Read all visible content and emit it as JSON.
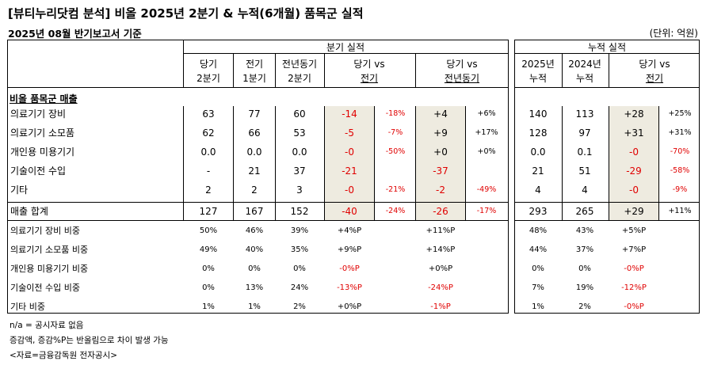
{
  "title": "[뷰티누리닷컴 분석] 비올 2025년 2분기 & 누적(6개월) 품목군 실적",
  "subtitle": "2025년 08월 반기보고서 기준",
  "unit": "(단위: 억원)",
  "headers": {
    "quarter_group": "분기 실적",
    "cumulative_group": "누적 실적",
    "cur_q": [
      "당기",
      "2분기"
    ],
    "prev_q": [
      "전기",
      "1분기"
    ],
    "yoy_q": [
      "전년동기",
      "2분기"
    ],
    "diff_prev": [
      "당기 vs",
      "전기"
    ],
    "diff_yoy": [
      "당기 vs",
      "전년동기"
    ],
    "cum_2025": [
      "2025년",
      "누적"
    ],
    "cum_2024": [
      "2024년",
      "누적"
    ],
    "cum_diff": [
      "당기 vs",
      "전기"
    ]
  },
  "section_label": "비올 품목군 매출",
  "rows": [
    {
      "label": "의료기기 장비",
      "q2": "63",
      "q1": "77",
      "yq2": "60",
      "dp": "-14",
      "dpp": "-18%",
      "dy": "+4",
      "dyp": "+6%",
      "c25": "140",
      "c24": "113",
      "cd": "+28",
      "cdp": "+25%"
    },
    {
      "label": "의료기기 소모품",
      "q2": "62",
      "q1": "66",
      "yq2": "53",
      "dp": "-5",
      "dpp": "-7%",
      "dy": "+9",
      "dyp": "+17%",
      "c25": "128",
      "c24": "97",
      "cd": "+31",
      "cdp": "+31%"
    },
    {
      "label": "개인용 미용기기",
      "q2": "0.0",
      "q1": "0.0",
      "yq2": "0.0",
      "dp": "-0",
      "dpp": "-50%",
      "dy": "+0",
      "dyp": "+0%",
      "c25": "0.0",
      "c24": "0.1",
      "cd": "-0",
      "cdp": "-70%"
    },
    {
      "label": "기술이전 수입",
      "q2": "-",
      "q1": "21",
      "yq2": "37",
      "dp": "-21",
      "dpp": "",
      "dy": "-37",
      "dyp": "",
      "c25": "21",
      "c24": "51",
      "cd": "-29",
      "cdp": "-58%"
    },
    {
      "label": "기타",
      "q2": "2",
      "q1": "2",
      "yq2": "3",
      "dp": "-0",
      "dpp": "-21%",
      "dy": "-2",
      "dyp": "-49%",
      "c25": "4",
      "c24": "4",
      "cd": "-0",
      "cdp": "-9%"
    }
  ],
  "total": {
    "label": "매출 합계",
    "q2": "127",
    "q1": "167",
    "yq2": "152",
    "dp": "-40",
    "dpp": "-24%",
    "dy": "-26",
    "dyp": "-17%",
    "c25": "293",
    "c24": "265",
    "cd": "+29",
    "cdp": "+11%"
  },
  "ratios": [
    {
      "label": "의료기기 장비 비중",
      "q2": "50%",
      "q1": "46%",
      "yq2": "39%",
      "dp": "+4%P",
      "dy": "+11%P",
      "c25": "48%",
      "c24": "43%",
      "cd": "+5%P"
    },
    {
      "label": "의료기기 소모품 비중",
      "q2": "49%",
      "q1": "40%",
      "yq2": "35%",
      "dp": "+9%P",
      "dy": "+14%P",
      "c25": "44%",
      "c24": "37%",
      "cd": "+7%P"
    },
    {
      "label": "개인용 미용기기 비중",
      "q2": "0%",
      "q1": "0%",
      "yq2": "0%",
      "dp": "-0%P",
      "dy": "+0%P",
      "c25": "0%",
      "c24": "0%",
      "cd": "-0%P"
    },
    {
      "label": "기술이전 수입 비중",
      "q2": "0%",
      "q1": "13%",
      "yq2": "24%",
      "dp": "-13%P",
      "dy": "-24%P",
      "c25": "7%",
      "c24": "19%",
      "cd": "-12%P"
    },
    {
      "label": "기타 비중",
      "q2": "1%",
      "q1": "1%",
      "yq2": "2%",
      "dp": "+0%P",
      "dy": "-1%P",
      "c25": "1%",
      "c24": "2%",
      "cd": "-0%P"
    }
  ],
  "notes": [
    "n/a = 공시자료 없음",
    "증감액, 증감%P는 반올림으로 차이 발생 가능",
    "<자료=금융감독원 전자공시>"
  ],
  "colors": {
    "negative": "#e00000",
    "shade": "#eeebe0"
  }
}
